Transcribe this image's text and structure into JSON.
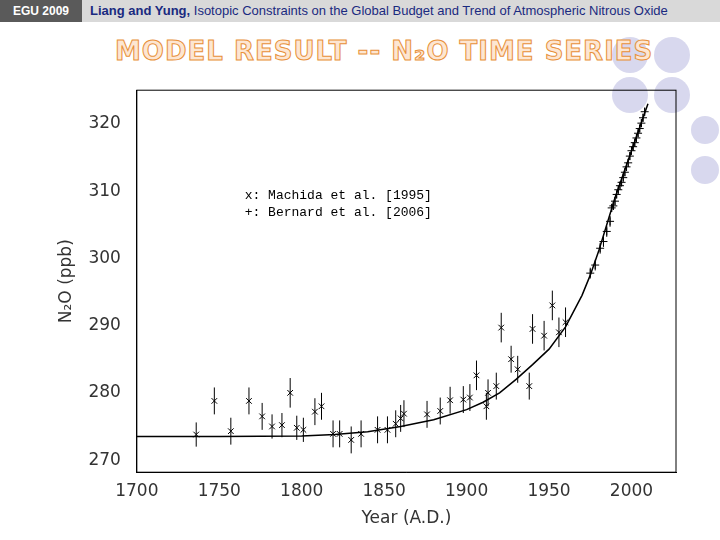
{
  "header": {
    "badge": "EGU 2009",
    "authors": "Liang and Yung,",
    "text": "Isotopic Constraints on the Global Budget and Trend of Atmospheric Nitrous Oxide"
  },
  "chart_data": {
    "type": "scatter",
    "title": "MODEL RESULT -- N₂O TIME SERIES",
    "x_label": "Year (A.D.)",
    "y_label": "N₂O (ppb)",
    "xlim": [
      1700,
      2027
    ],
    "xticks": [
      1700,
      1750,
      1800,
      1850,
      1900,
      1950,
      2000
    ],
    "ylim": [
      268.2,
      325
    ],
    "yticks": [
      270,
      280,
      290,
      300,
      310,
      320
    ],
    "grid": false,
    "series": [
      {
        "type": "line",
        "color": "#000000",
        "marker": "none",
        "line_style": "solid",
        "x": [
          1700,
          1750,
          1800,
          1820,
          1840,
          1860,
          1880,
          1900,
          1910,
          1920,
          1930,
          1940,
          1950,
          1960,
          1970,
          1975,
          1980,
          1985,
          1990,
          1995,
          2000,
          2005,
          2010
        ],
        "values": [
          273.5,
          273.5,
          273.6,
          273.8,
          274.2,
          275.0,
          276.0,
          277.5,
          278.6,
          280.0,
          282.0,
          284.2,
          286.5,
          289.8,
          294.5,
          297.5,
          301.0,
          305.0,
          309.0,
          312.5,
          316.0,
          319.5,
          323.0
        ]
      },
      {
        "name": "x: Machida et al. [1995]",
        "type": "scatter",
        "color": "#000000",
        "marker": "x",
        "x": [
          1736,
          1747,
          1757,
          1768,
          1776,
          1782,
          1788,
          1793,
          1797,
          1801,
          1808,
          1812,
          1819,
          1823,
          1830,
          1836,
          1846,
          1852,
          1857,
          1860,
          1862,
          1876,
          1884,
          1890,
          1898,
          1902,
          1906,
          1912,
          1913,
          1918,
          1921,
          1927,
          1931,
          1938,
          1940,
          1947,
          1952,
          1956,
          1960
        ],
        "values": [
          273.8,
          278.8,
          274.3,
          278.8,
          276.5,
          275.0,
          275.2,
          280.0,
          274.8,
          274.5,
          277.2,
          278.0,
          273.9,
          273.9,
          273.0,
          273.9,
          274.5,
          274.5,
          275.4,
          276.2,
          276.9,
          276.8,
          277.3,
          278.9,
          279.0,
          279.3,
          282.6,
          278.0,
          280.0,
          281.0,
          289.7,
          285.0,
          283.5,
          281.0,
          289.5,
          288.5,
          293.0,
          289.0,
          290.5
        ],
        "errors": [
          1.8,
          2.0,
          2.0,
          2.0,
          2.0,
          1.8,
          1.8,
          2.2,
          1.8,
          1.8,
          2.0,
          2.0,
          2.0,
          2.0,
          2.0,
          2.0,
          2.0,
          2.0,
          2.0,
          2.0,
          2.0,
          2.0,
          2.0,
          2.0,
          2.0,
          2.0,
          2.2,
          2.0,
          2.0,
          2.0,
          2.2,
          2.0,
          2.0,
          2.0,
          2.2,
          2.2,
          2.2,
          2.2,
          2.2
        ]
      },
      {
        "name": "+: Bernard et al. [2006]",
        "type": "scatter",
        "color": "#000000",
        "marker": "+",
        "x": [
          1975,
          1978,
          1981,
          1983,
          1985,
          1987,
          1988,
          1989,
          1990,
          1991,
          1992,
          1993,
          1994,
          1995,
          1996,
          1997,
          1998,
          1999,
          2000,
          2001,
          2002,
          2003,
          2004,
          2005,
          2006,
          2007,
          2008
        ],
        "values": [
          297.8,
          299.0,
          301.5,
          302.5,
          304.0,
          305.5,
          307.5,
          307.8,
          308.5,
          309.5,
          310.2,
          310.8,
          311.3,
          312.0,
          312.8,
          313.6,
          314.2,
          315.2,
          316.0,
          316.6,
          317.2,
          317.9,
          318.6,
          319.3,
          320.1,
          320.9,
          321.8
        ],
        "errors": [
          0.8,
          0.8,
          0.8,
          0.8,
          0.8,
          0.8,
          0.6,
          0.6,
          0.6,
          0.6,
          0.6,
          0.6,
          0.6,
          0.6,
          0.6,
          0.6,
          0.6,
          0.6,
          0.6,
          0.6,
          0.6,
          0.6,
          0.6,
          0.6,
          0.6,
          0.6,
          0.6
        ]
      }
    ]
  }
}
